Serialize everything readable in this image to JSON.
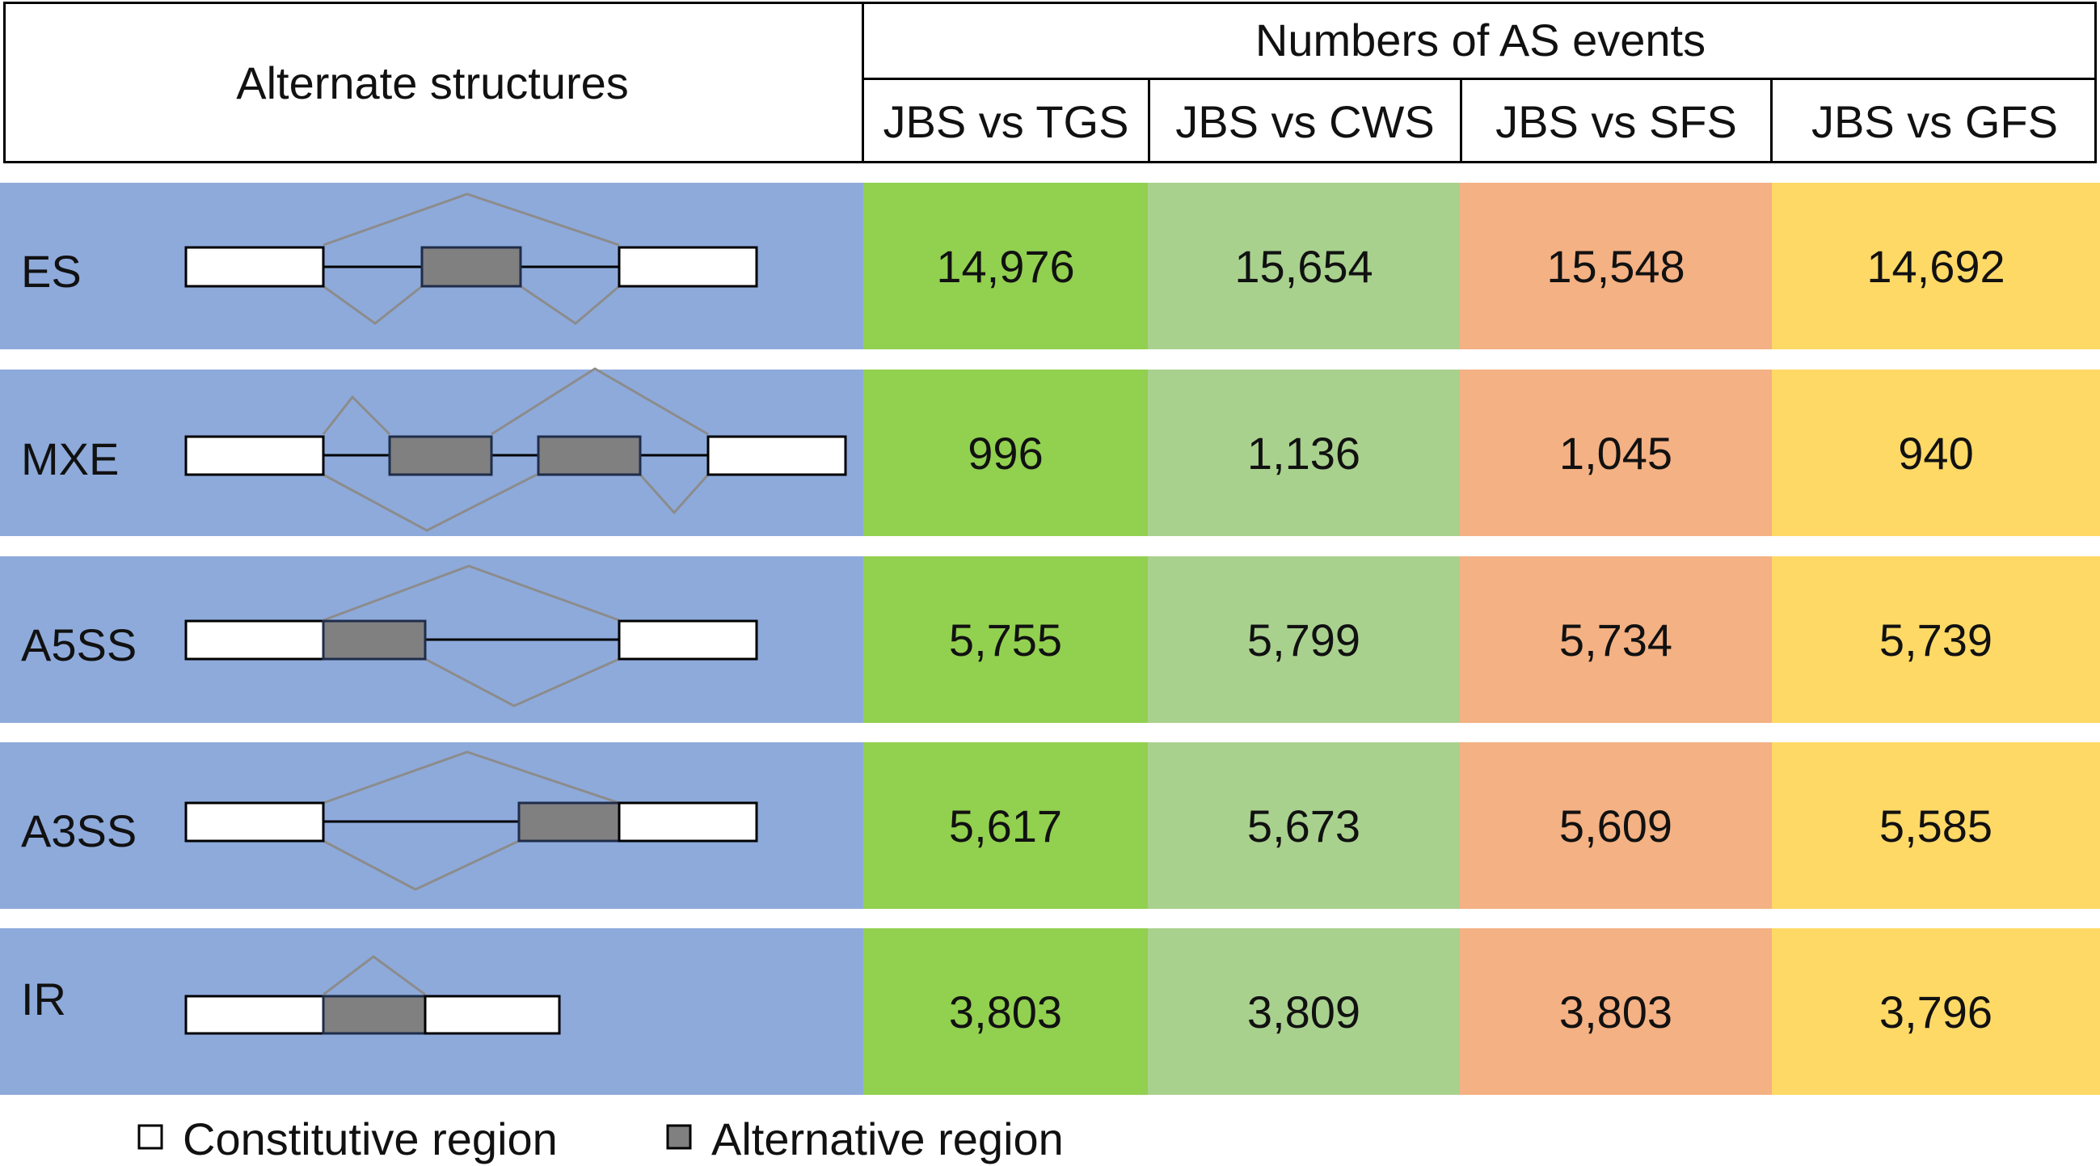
{
  "header": {
    "structures_title": "Alternate structures",
    "events_title": "Numbers of AS events",
    "columns": [
      "JBS vs TGS",
      "JBS vs CWS",
      "JBS vs SFS",
      "JBS vs GFS"
    ]
  },
  "colors": {
    "structure_bg": "#8eaadb",
    "col_bg": [
      "#92d050",
      "#a9d18e",
      "#f4b183",
      "#ffd966"
    ],
    "alternative_exon": "#808080",
    "constitutive_exon": "#ffffff"
  },
  "rows": [
    {
      "label": "ES",
      "values": [
        "14,976",
        "15,654",
        "15,548",
        "14,692"
      ]
    },
    {
      "label": "MXE",
      "values": [
        "996",
        "1,136",
        "1,045",
        "940"
      ]
    },
    {
      "label": "A5SS",
      "values": [
        "5,755",
        "5,799",
        "5,734",
        "5,739"
      ]
    },
    {
      "label": "A3SS",
      "values": [
        "5,617",
        "5,673",
        "5,609",
        "5,585"
      ]
    },
    {
      "label": "IR",
      "values": [
        "3,803",
        "3,809",
        "3,803",
        "3,796"
      ]
    }
  ],
  "legend": {
    "constitutive_label": "Constitutive region",
    "alternative_label": "Alternative region"
  }
}
